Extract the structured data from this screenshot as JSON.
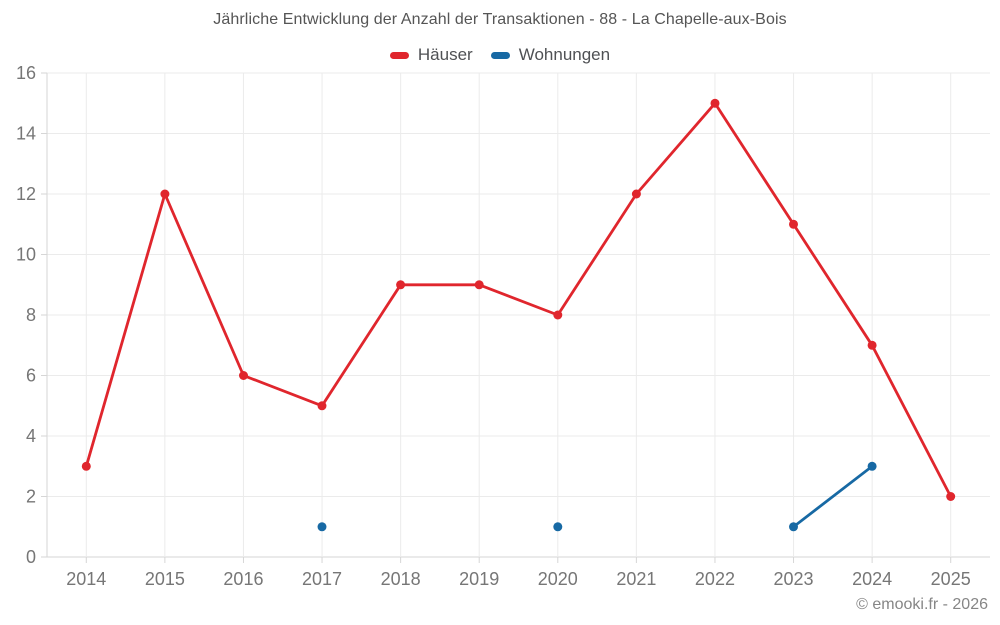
{
  "title": "Jährliche Entwicklung der Anzahl der Transaktionen - 88 - La Chapelle-aux-Bois",
  "footer": "© emooki.fr - 2026",
  "chart_data": {
    "type": "line",
    "title": "Jährliche Entwicklung der Anzahl der Transaktionen - 88 - La Chapelle-aux-Bois",
    "categories": [
      "2014",
      "2015",
      "2016",
      "2017",
      "2018",
      "2019",
      "2020",
      "2021",
      "2022",
      "2023",
      "2024",
      "2025"
    ],
    "series": [
      {
        "name": "Häuser",
        "color": "#e0262d",
        "values": [
          3,
          12,
          6,
          5,
          9,
          9,
          8,
          12,
          15,
          11,
          7,
          2
        ]
      },
      {
        "name": "Wohnungen",
        "color": "#1769a4",
        "values": [
          null,
          null,
          null,
          1,
          null,
          null,
          1,
          null,
          null,
          1,
          3,
          null
        ]
      }
    ],
    "xlabel": "",
    "ylabel": "",
    "ylim": [
      0,
      16
    ],
    "ytick_step": 2,
    "grid": true,
    "legend_position": "top",
    "span_gaps": false
  },
  "colors": {
    "background": "#ffffff",
    "gridline": "#ebebeb",
    "axis_line": "#d6d6d6",
    "tick_label": "#767676",
    "title_text": "#555555",
    "legend_text": "#4f5154",
    "footer_text": "#868686"
  }
}
